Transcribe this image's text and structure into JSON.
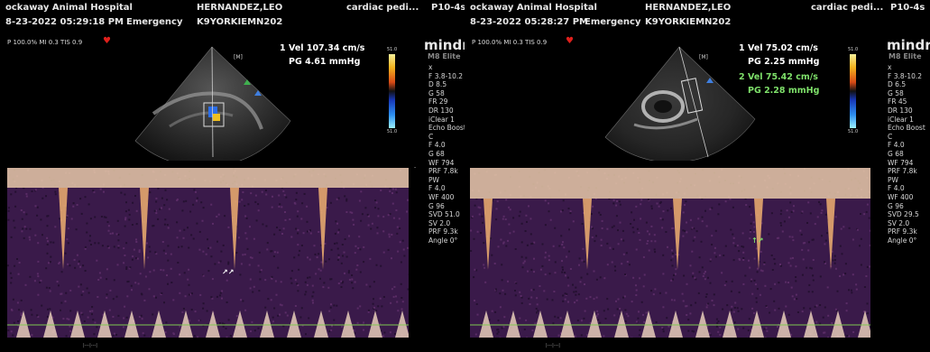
{
  "panels": [
    {
      "hospital": "ockaway Animal Hospital",
      "patient_name": "HERNANDEZ,LEO",
      "exam": "cardiac pedi...",
      "probe": "P10-4s",
      "datetime": "8-23-2022 05:29:18 PM",
      "dept": "Emergency",
      "patient_id": "K9YORKIEMN202",
      "status_line": "P 100.0% MI 0.3 TIS 0.9",
      "measurements": [
        {
          "index": "1",
          "rows": [
            "Vel  107.34 cm/s",
            "PG   4.61 mmHg"
          ],
          "color": "#ffffff"
        }
      ],
      "params": "x\nF 3.8-10.2\nD 8.5\nG 58\nFR 29\nDR 130\niClear 1\nEcho Boost\nC\nF 4.0\nG 68\nWF 794\nPRF 7.8k\nPW\nF 4.0\nWF 400\nG 96\nSVD 51.0\nSV 2.0\nPRF 9.3k\nAngle 0°",
      "colorbar_top": "51.0",
      "colorbar_bottom": "51.0",
      "cursor": "↗↗"
    },
    {
      "hospital": "ockaway Animal Hospital",
      "patient_name": "HERNANDEZ,LEO",
      "exam": "cardiac pedi...",
      "probe": "P10-4s",
      "datetime": "8-23-2022 05:28:27 PM",
      "dept": "Emergency",
      "patient_id": "K9YORKIEMN202",
      "status_line": "P 100.0% MI 0.3 TIS 0.9",
      "measurements": [
        {
          "index": "1",
          "rows": [
            "Vel  75.02 cm/s",
            "PG   2.25 mmHg"
          ],
          "color": "#ffffff"
        },
        {
          "index": "2",
          "rows": [
            "Vel  75.42 cm/s",
            "PG   2.28 mmHg"
          ],
          "color": "#7ee06a"
        }
      ],
      "params": "x\nF 3.8-10.2\nD 6.5\nG 58\nFR 45\nDR 130\niClear 1\nEcho Boost\nC\nF 4.0\nG 68\nWF 794\nPRF 7.8k\nPW\nF 4.0\nWF 400\nG 96\nSVD 29.5\nSV 2.0\nPRF 9.3k\nAngle 0°",
      "colorbar_top": "51.0",
      "colorbar_bottom": "51.0",
      "cursor": "↑↗"
    }
  ],
  "brand": "mindray",
  "model": "M8 Elite",
  "colors": {
    "background": "#000000",
    "doppler": "#3a1a4a",
    "baseline": "#7ec850",
    "heart": "#e0201c"
  },
  "icons": [
    "heart-icon",
    "transducer-marker-icon",
    "measurement-cursor-icon"
  ]
}
